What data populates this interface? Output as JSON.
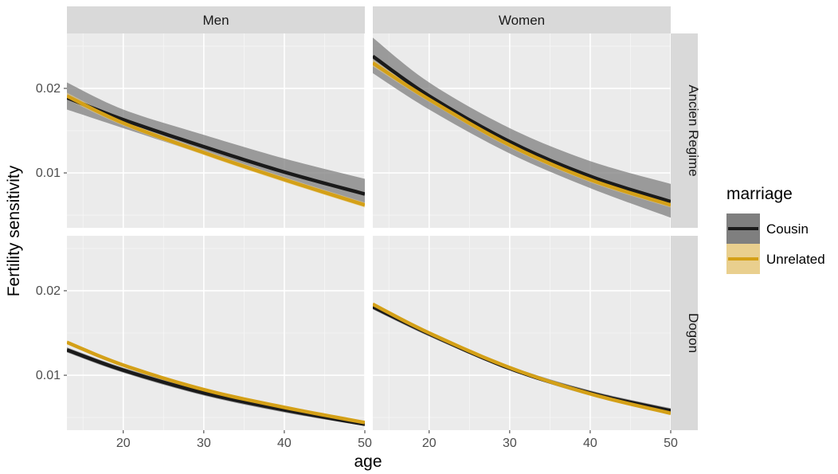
{
  "chart_data": {
    "type": "line",
    "facet_columns": [
      "Men",
      "Women"
    ],
    "facet_rows": [
      "Ancien Regime",
      "Dogon"
    ],
    "xlabel": "age",
    "ylabel": "Fertility sensitivity",
    "xlim": [
      13,
      50
    ],
    "ylim": [
      0.0035,
      0.0265
    ],
    "x_ticks": [
      20,
      30,
      40,
      50
    ],
    "y_ticks": [
      0.01,
      0.02
    ],
    "y_tick_labels": [
      "0.01",
      "0.02"
    ],
    "grid": true,
    "legend": {
      "title": "marriage",
      "placement": "right",
      "entries": [
        "Cousin",
        "Unrelated"
      ]
    },
    "colors": {
      "Cousin": "#1a1a1a",
      "Unrelated": "#d4a017",
      "cousin_band": "#7f7f7f",
      "unrelated_band": "#e9cf8e",
      "panel_bg": "#ebebeb",
      "strip_bg": "#d9d9d9"
    },
    "x": [
      13,
      20,
      30,
      40,
      50
    ],
    "panels": [
      {
        "col": "Men",
        "row": "Ancien Regime",
        "series": [
          {
            "name": "Cousin",
            "values": [
              0.0189,
              0.0163,
              0.0131,
              0.0101,
              0.0075
            ],
            "lower": [
              0.0175,
              0.0153,
              0.0122,
              0.0093,
              0.0063
            ],
            "upper": [
              0.0207,
              0.0175,
              0.0145,
              0.0117,
              0.0093
            ]
          },
          {
            "name": "Unrelated",
            "values": [
              0.0191,
              0.0159,
              0.0124,
              0.0092,
              0.0062
            ],
            "lower": [
              0.0187,
              0.0156,
              0.0121,
              0.0089,
              0.0059
            ],
            "upper": [
              0.0195,
              0.0162,
              0.0127,
              0.0095,
              0.0065
            ]
          }
        ]
      },
      {
        "col": "Women",
        "row": "Ancien Regime",
        "series": [
          {
            "name": "Cousin",
            "values": [
              0.0238,
              0.0191,
              0.0137,
              0.0096,
              0.0066
            ],
            "lower": [
              0.0218,
              0.0175,
              0.0123,
              0.0082,
              0.0047
            ],
            "upper": [
              0.026,
              0.0207,
              0.0153,
              0.0114,
              0.0087
            ]
          },
          {
            "name": "Unrelated",
            "values": [
              0.023,
              0.0187,
              0.0133,
              0.0092,
              0.0062
            ],
            "lower": [
              0.0226,
              0.0184,
              0.013,
              0.0089,
              0.0059
            ],
            "upper": [
              0.0234,
              0.019,
              0.0136,
              0.0095,
              0.0065
            ]
          }
        ]
      },
      {
        "col": "Men",
        "row": "Dogon",
        "series": [
          {
            "name": "Cousin",
            "values": [
              0.013,
              0.0106,
              0.0079,
              0.0059,
              0.0042
            ],
            "lower": [
              0.0127,
              0.0103,
              0.0076,
              0.0056,
              0.004
            ],
            "upper": [
              0.0133,
              0.0109,
              0.0082,
              0.0062,
              0.0045
            ]
          },
          {
            "name": "Unrelated",
            "values": [
              0.0139,
              0.0112,
              0.0083,
              0.0062,
              0.0044
            ],
            "lower": [
              0.0137,
              0.011,
              0.0081,
              0.006,
              0.0042
            ],
            "upper": [
              0.0141,
              0.0114,
              0.0085,
              0.0064,
              0.0046
            ]
          }
        ]
      },
      {
        "col": "Women",
        "row": "Dogon",
        "series": [
          {
            "name": "Cousin",
            "values": [
              0.0181,
              0.0149,
              0.0108,
              0.0079,
              0.0058
            ],
            "lower": [
              0.0178,
              0.0146,
              0.0106,
              0.0076,
              0.0055
            ],
            "upper": [
              0.0185,
              0.0152,
              0.0111,
              0.0082,
              0.0061
            ]
          },
          {
            "name": "Unrelated",
            "values": [
              0.0184,
              0.015,
              0.0109,
              0.0078,
              0.0055
            ],
            "lower": [
              0.0182,
              0.0148,
              0.0107,
              0.0076,
              0.0053
            ],
            "upper": [
              0.0186,
              0.0152,
              0.0111,
              0.008,
              0.0057
            ]
          }
        ]
      }
    ]
  }
}
